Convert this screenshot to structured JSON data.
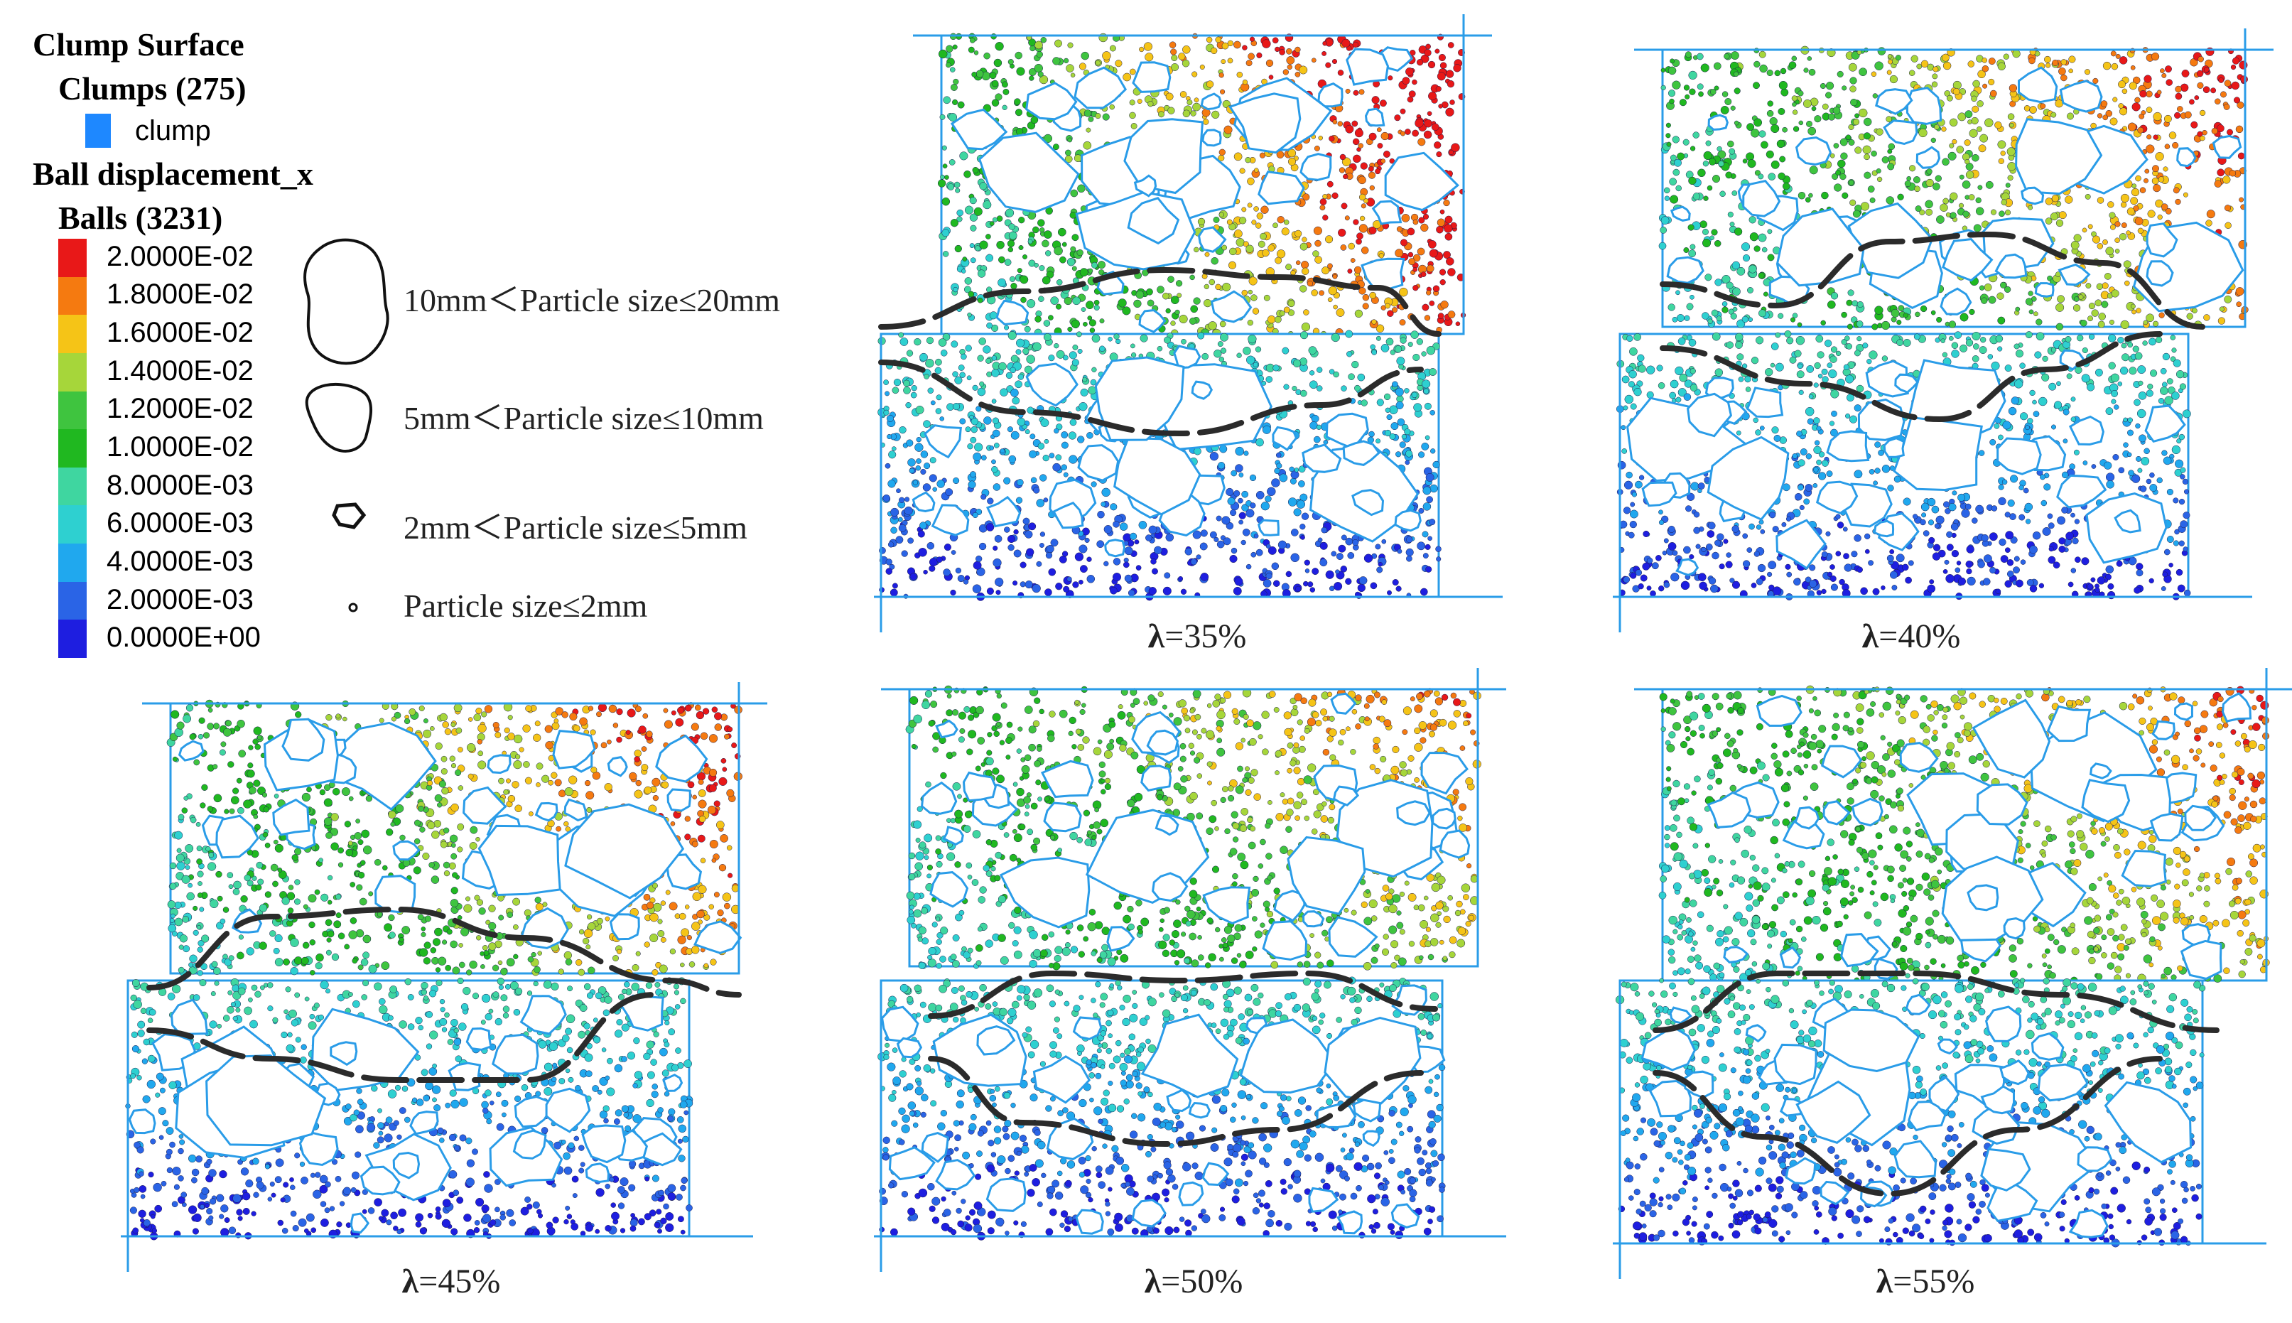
{
  "legend": {
    "clump_surface_title": "Clump Surface",
    "clumps_title": "Clumps (275)",
    "clump_item_label": "clump",
    "clump_color": "#1e88ff",
    "ball_disp_title": "Ball displacement_x",
    "balls_title": "Balls (3231)",
    "colorbar": [
      {
        "label": "2.0000E-02",
        "color": "#e81818"
      },
      {
        "label": "1.8000E-02",
        "color": "#f57a10"
      },
      {
        "label": "1.6000E-02",
        "color": "#f5c417"
      },
      {
        "label": "1.4000E-02",
        "color": "#a6d63a"
      },
      {
        "label": "1.2000E-02",
        "color": "#3fc43f"
      },
      {
        "label": "1.0000E-02",
        "color": "#20b820"
      },
      {
        "label": "8.0000E-03",
        "color": "#3fd6a0"
      },
      {
        "label": "6.0000E-03",
        "color": "#2ed0d0"
      },
      {
        "label": "4.0000E-03",
        "color": "#20a8ee"
      },
      {
        "label": "2.0000E-03",
        "color": "#2a64e6"
      },
      {
        "label": "0.0000E+00",
        "color": "#1e1ee0"
      }
    ]
  },
  "particle_sizes": [
    {
      "label": "10mm＜Particle size≤20mm"
    },
    {
      "label": "5mm＜Particle size≤10mm"
    },
    {
      "label": "2mm＜Particle size≤5mm"
    },
    {
      "label": "Particle size≤2mm"
    }
  ],
  "panels": [
    {
      "lambda_symbol": "λ",
      "lambda_value": "=35%"
    },
    {
      "lambda_symbol": "λ",
      "lambda_value": "=40%"
    },
    {
      "lambda_symbol": "λ",
      "lambda_value": "=45%"
    },
    {
      "lambda_symbol": "λ",
      "lambda_value": "=50%"
    },
    {
      "lambda_symbol": "λ",
      "lambda_value": "=55%"
    }
  ]
}
